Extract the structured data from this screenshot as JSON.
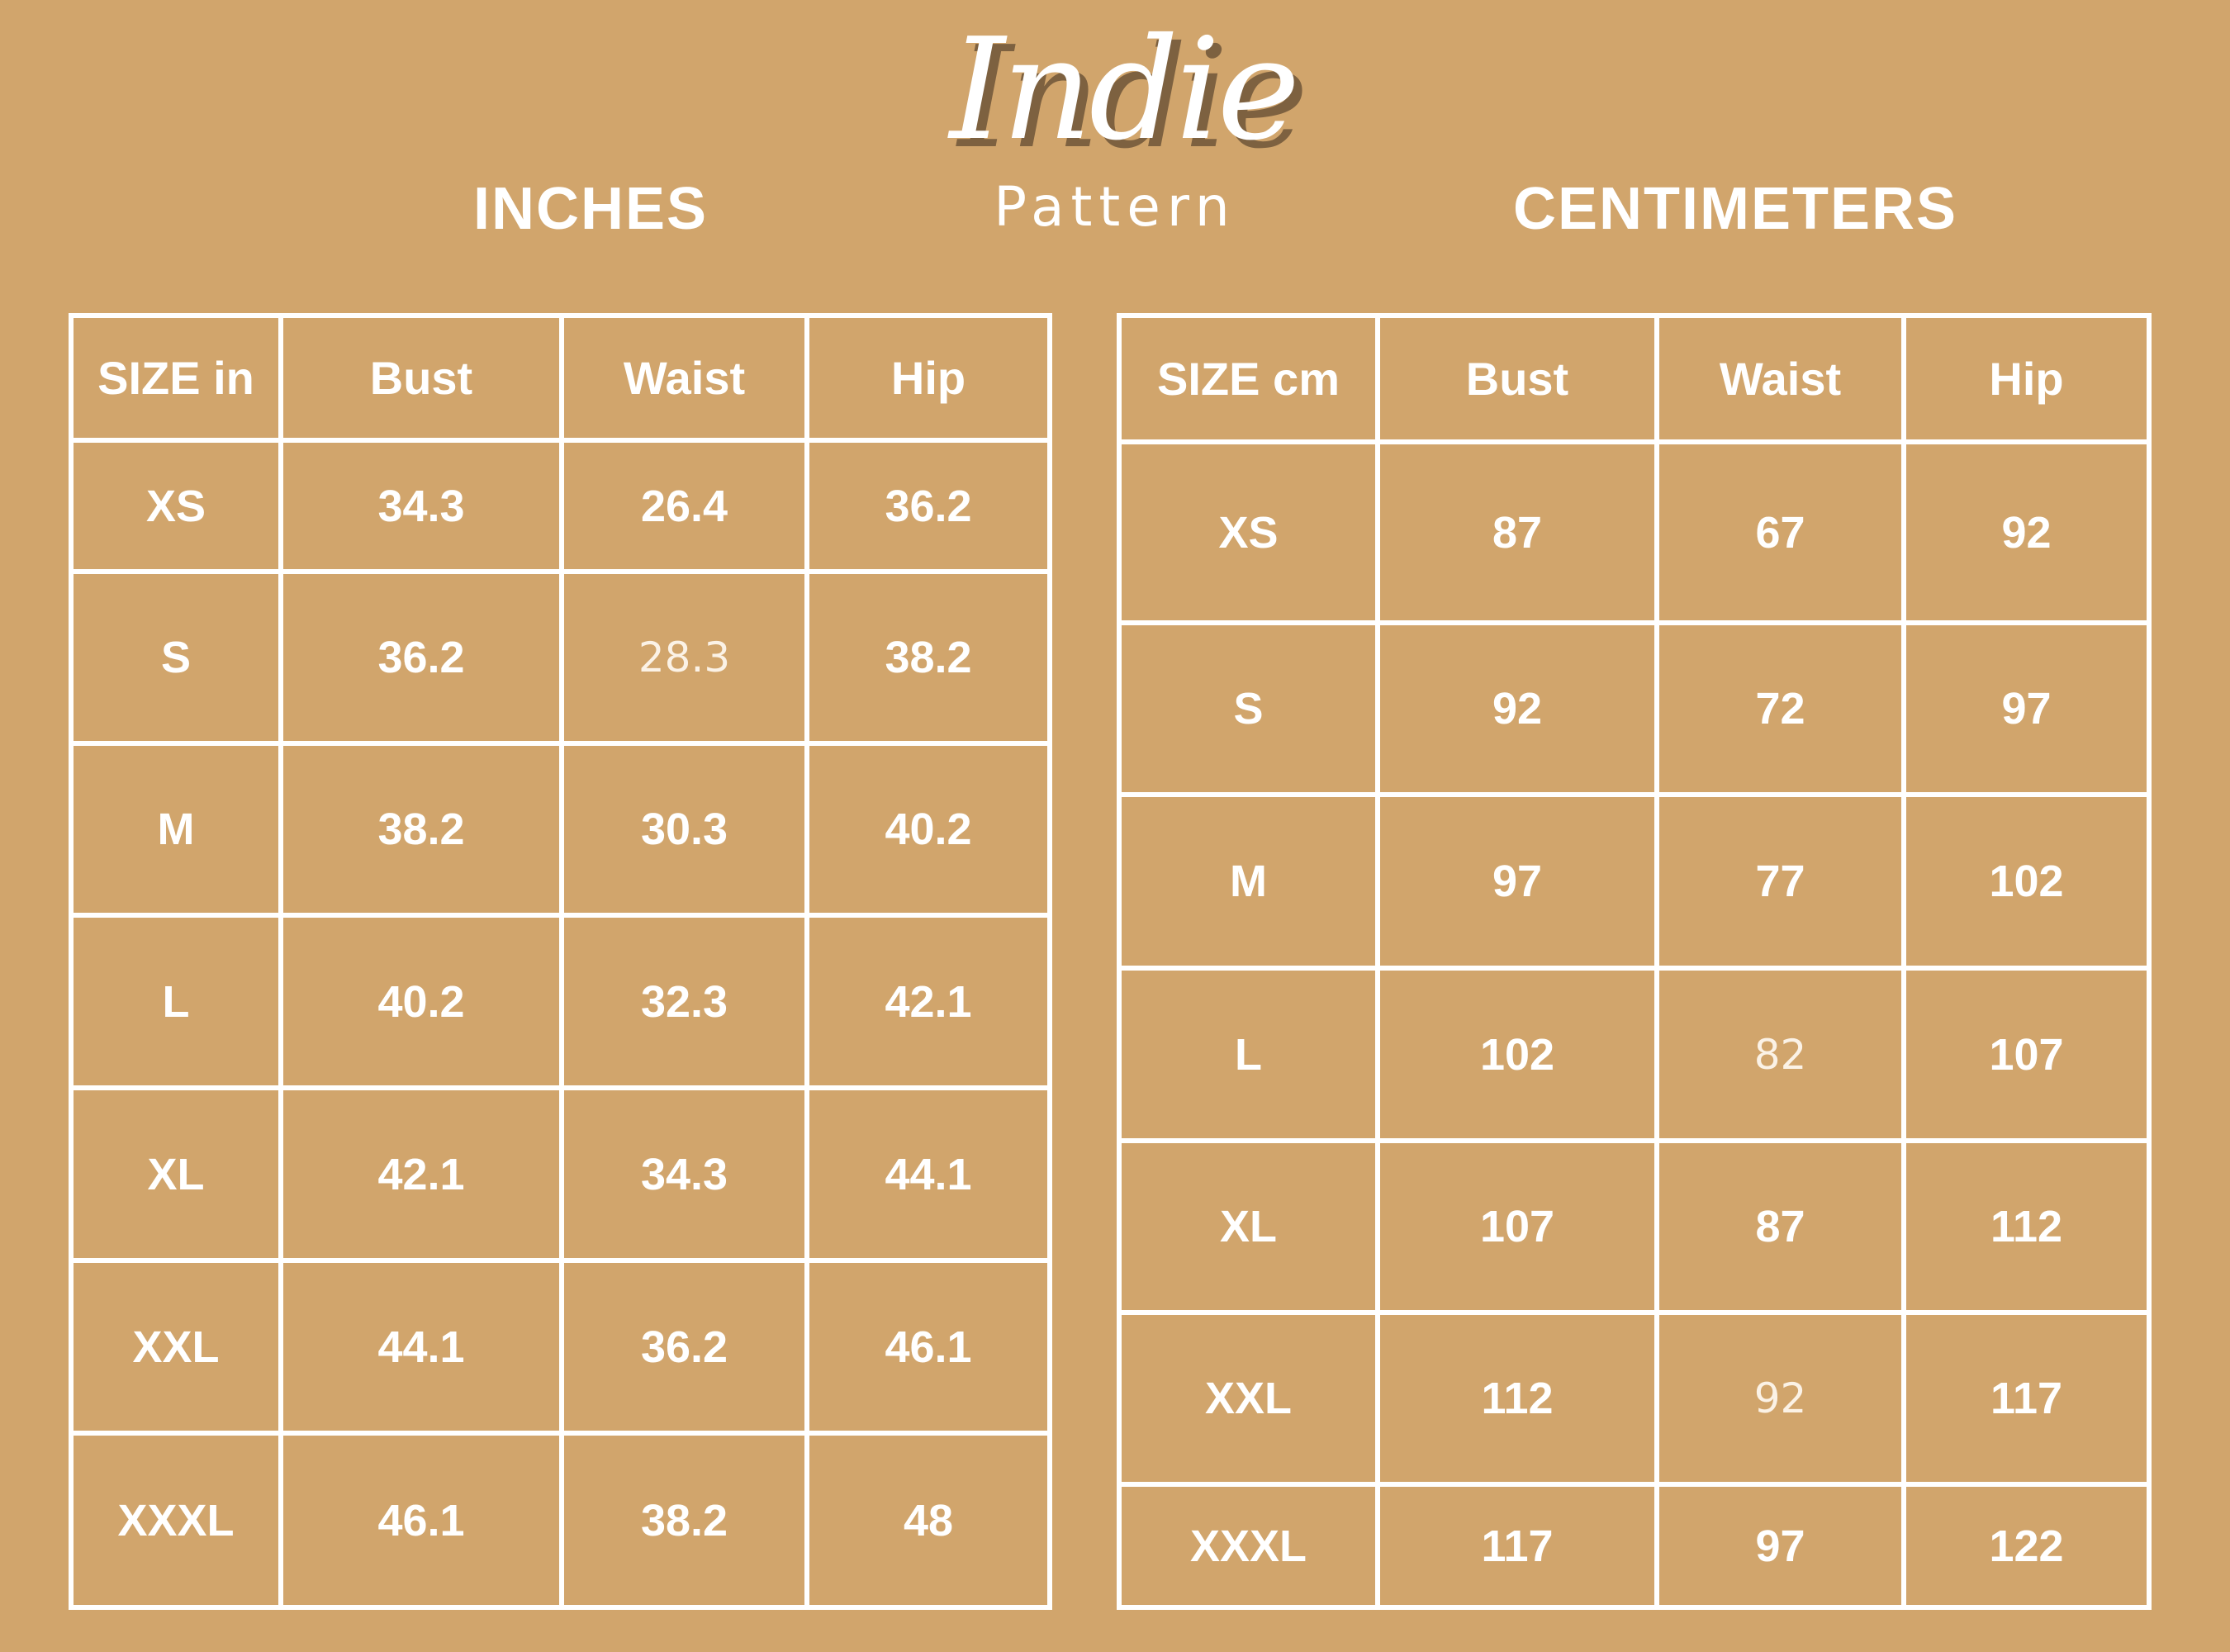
{
  "logo": {
    "title": "Indie",
    "subtitle": "Pattern"
  },
  "colors": {
    "background": "#D1A56C",
    "text": "#FFFFFF",
    "logo_shadow": "#7D6140"
  },
  "inches": {
    "heading": "INCHES",
    "columns": [
      "SIZE in",
      "Bust",
      "Waist",
      "Hip"
    ],
    "rows": [
      [
        "XS",
        "34.3",
        "26.4",
        "36.2"
      ],
      [
        "S",
        "36.2",
        "28.3",
        "38.2"
      ],
      [
        "M",
        "38.2",
        "30.3",
        "40.2"
      ],
      [
        "L",
        "40.2",
        "32.3",
        "42.1"
      ],
      [
        "XL",
        "42.1",
        "34.3",
        "44.1"
      ],
      [
        "XXL",
        "44.1",
        "36.2",
        "46.1"
      ],
      [
        "XXXL",
        "46.1",
        "38.2",
        "48"
      ]
    ]
  },
  "centimeters": {
    "heading": "CENTIMETERS",
    "columns": [
      "SIZE cm",
      "Bust",
      "Waist",
      "Hip"
    ],
    "rows": [
      [
        "XS",
        "87",
        "67",
        "92"
      ],
      [
        "S",
        "92",
        "72",
        "97"
      ],
      [
        "M",
        "97",
        "77",
        "102"
      ],
      [
        "L",
        "102",
        "82",
        "107"
      ],
      [
        "XL",
        "107",
        "87",
        "112"
      ],
      [
        "XXL",
        "112",
        "92",
        "117"
      ],
      [
        "XXXL",
        "117",
        "97",
        "122"
      ]
    ]
  }
}
